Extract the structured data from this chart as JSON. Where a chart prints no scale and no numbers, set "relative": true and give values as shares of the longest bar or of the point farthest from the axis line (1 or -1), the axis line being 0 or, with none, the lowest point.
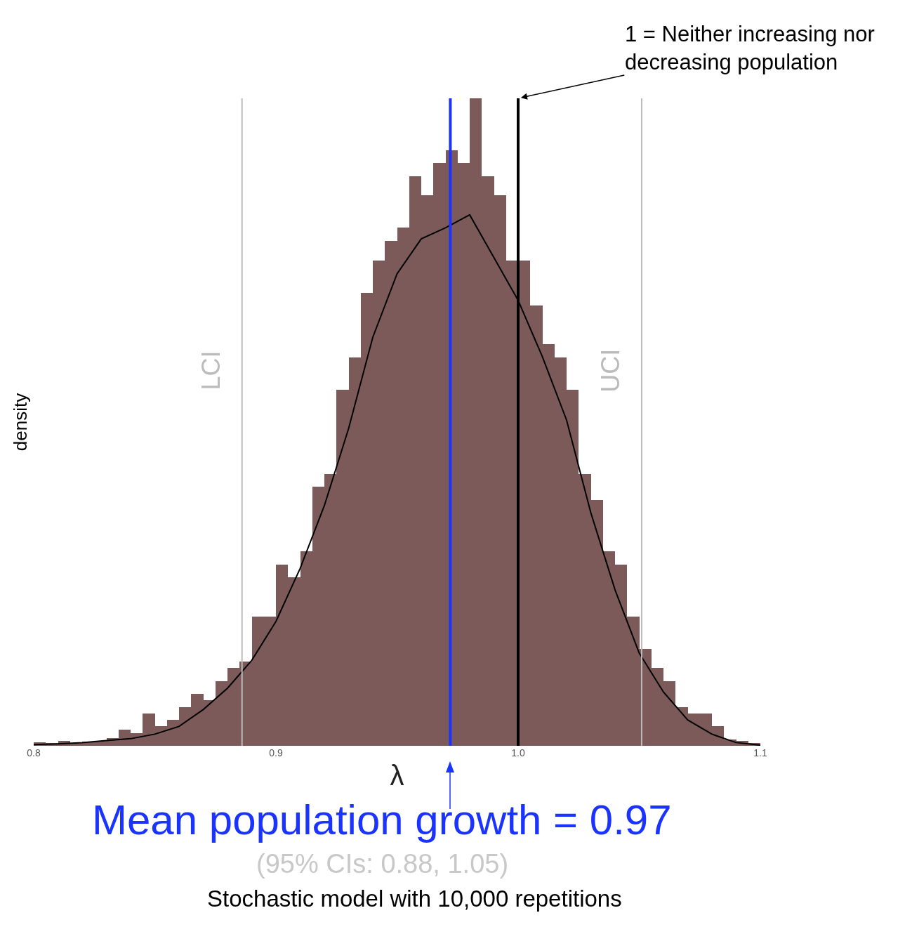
{
  "chart_data": {
    "type": "histogram",
    "relative": true,
    "xlabel": "λ",
    "ylabel": "density",
    "xlim": [
      0.8,
      1.1
    ],
    "xticks": [
      0.8,
      0.9,
      {
        "value": 1.0,
        "label": "1.0"
      },
      1.1
    ],
    "bins": [
      0.8,
      0.805,
      0.81,
      0.815,
      0.82,
      0.825,
      0.83,
      0.835,
      0.84,
      0.845,
      0.85,
      0.855,
      0.86,
      0.865,
      0.87,
      0.875,
      0.88,
      0.885,
      0.89,
      0.895,
      0.9,
      0.905,
      0.91,
      0.915,
      0.92,
      0.925,
      0.93,
      0.935,
      0.94,
      0.945,
      0.95,
      0.955,
      0.96,
      0.965,
      0.97,
      0.975,
      0.98,
      0.985,
      0.99,
      0.995,
      1.0,
      1.005,
      1.01,
      1.015,
      1.02,
      1.025,
      1.03,
      1.035,
      1.04,
      1.045,
      1.05,
      1.055,
      1.06,
      1.065,
      1.07,
      1.075,
      1.08,
      1.085,
      1.09,
      1.095,
      1.1
    ],
    "series": [
      {
        "color": "#7d5a5a",
        "values": [
          0.005,
          0.004,
          0.008,
          0.004,
          0.006,
          0.008,
          0.012,
          0.025,
          0.02,
          0.05,
          0.03,
          0.04,
          0.06,
          0.08,
          0.07,
          0.1,
          0.12,
          0.13,
          0.2,
          0.2,
          0.28,
          0.26,
          0.3,
          0.4,
          0.42,
          0.55,
          0.6,
          0.7,
          0.75,
          0.78,
          0.8,
          0.88,
          0.85,
          0.9,
          0.92,
          0.9,
          1,
          0.88,
          0.85,
          0.75,
          0.75,
          0.68,
          0.62,
          0.6,
          0.55,
          0.42,
          0.38,
          0.3,
          0.28,
          0.2,
          0.15,
          0.12,
          0.1,
          0.06,
          0.05,
          0.05,
          0.03,
          0.01,
          0.008,
          0.004
        ]
      },
      {
        "type": "line",
        "color": "#000000",
        "x": [
          0.8,
          0.81,
          0.82,
          0.83,
          0.84,
          0.85,
          0.86,
          0.87,
          0.88,
          0.89,
          0.9,
          0.91,
          0.92,
          0.93,
          0.94,
          0.95,
          0.96,
          0.97,
          0.98,
          0.99,
          1.0,
          1.01,
          1.02,
          1.03,
          1.04,
          1.05,
          1.06,
          1.07,
          1.08,
          1.09,
          1.1
        ],
        "values": [
          0.002,
          0.003,
          0.005,
          0.008,
          0.011,
          0.018,
          0.03,
          0.056,
          0.089,
          0.132,
          0.192,
          0.274,
          0.371,
          0.49,
          0.631,
          0.729,
          0.783,
          0.8,
          0.82,
          0.754,
          0.688,
          0.601,
          0.503,
          0.36,
          0.241,
          0.143,
          0.083,
          0.04,
          0.018,
          0.005,
          0.001
        ]
      }
    ],
    "ref_lines": [
      {
        "axis": "x",
        "value": 0.886,
        "label": "LCI",
        "color": "#bbbbbb"
      },
      {
        "axis": "x",
        "value": 1.051,
        "label": "UCI",
        "color": "#bbbbbb"
      },
      {
        "axis": "x",
        "value": 0.972,
        "color": "#1a33ff"
      },
      {
        "axis": "x",
        "value": 1.0,
        "color": "#000000"
      }
    ],
    "annotations": [
      {
        "text": "1 = Neither increasing nor decreasing population",
        "x": 1.0,
        "y": 1
      },
      {
        "text": "Mean population growth = 0.97",
        "x": 0.972,
        "y": 0
      },
      "(95% CIs: 0.88, 1.05)",
      "Stochastic model with 10,000 repetitions"
    ],
    "grid": false
  }
}
